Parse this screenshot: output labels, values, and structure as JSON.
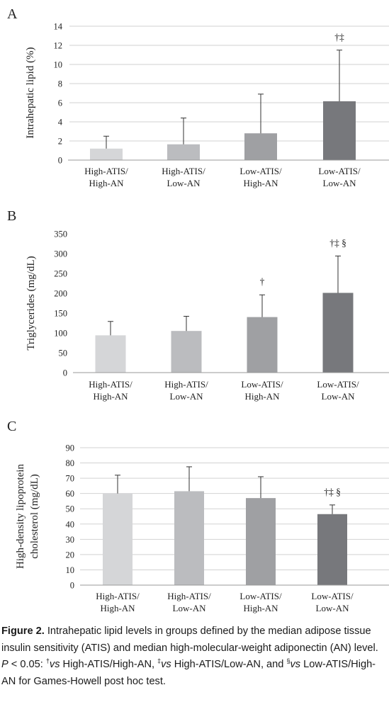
{
  "chart_data": [
    {
      "type": "bar",
      "panel_label": "A",
      "ylabel": "Intrahepatic lipid (%)",
      "ylim": [
        0,
        14
      ],
      "yticks": [
        0,
        2,
        4,
        6,
        8,
        10,
        12,
        14
      ],
      "grid": true,
      "categories": [
        [
          "High-ATIS/",
          "High-AN"
        ],
        [
          "High-ATIS/",
          "Low-AN"
        ],
        [
          "Low-ATIS/",
          "High-AN"
        ],
        [
          "Low-ATIS/",
          "Low-AN"
        ]
      ],
      "values": [
        1.2,
        1.65,
        2.8,
        6.15
      ],
      "error_upper": [
        2.5,
        4.4,
        6.9,
        11.5
      ],
      "annotations": [
        "",
        "",
        "",
        "†‡"
      ],
      "colors": [
        "#d5d6d8",
        "#bbbcbf",
        "#9fa0a3",
        "#77787c"
      ]
    },
    {
      "type": "bar",
      "panel_label": "B",
      "ylabel": "Triglycerides (mg/dL)",
      "ylim": [
        0,
        350
      ],
      "yticks": [
        0,
        50,
        100,
        150,
        200,
        250,
        300,
        350
      ],
      "grid": false,
      "categories": [
        [
          "High-ATIS/",
          "High-AN"
        ],
        [
          "High-ATIS/",
          "Low-AN"
        ],
        [
          "Low-ATIS/",
          "High-AN"
        ],
        [
          "Low-ATIS/",
          "Low-AN"
        ]
      ],
      "values": [
        94,
        105,
        140,
        201
      ],
      "error_upper": [
        129,
        142,
        196,
        294
      ],
      "annotations": [
        "",
        "",
        "†",
        "†‡ §"
      ],
      "colors": [
        "#d5d6d8",
        "#bbbcbf",
        "#9fa0a3",
        "#77787c"
      ]
    },
    {
      "type": "bar",
      "panel_label": "C",
      "ylabel": [
        "High-density lipoprotein",
        "cholesterol (mg/dL)"
      ],
      "ylim": [
        0,
        90
      ],
      "yticks": [
        0,
        10,
        20,
        30,
        40,
        50,
        60,
        70,
        80,
        90
      ],
      "grid": true,
      "categories": [
        [
          "High-ATIS/",
          "High-AN"
        ],
        [
          "High-ATIS/",
          "Low-AN"
        ],
        [
          "Low-ATIS/",
          "High-AN"
        ],
        [
          "Low-ATIS/",
          "Low-AN"
        ]
      ],
      "values": [
        60,
        61.5,
        57,
        46.5
      ],
      "error_upper": [
        72,
        77.5,
        71,
        52.5
      ],
      "annotations": [
        "",
        "",
        "",
        "†‡ §"
      ],
      "colors": [
        "#d5d6d8",
        "#bbbcbf",
        "#9fa0a3",
        "#77787c"
      ]
    }
  ],
  "caption": {
    "lead": "Figure 2.",
    "text_1": " Intrahepatic lipid levels in groups defined by the median adipose tissue insulin sensitivity (ATIS) and median high-molecular-weight adiponectin (AN) level. ",
    "p_label": "P",
    "text_2": " < 0.05: ",
    "mark_1": "†",
    "vs_1": "vs",
    "text_3": " High-ATIS/High-AN, ",
    "mark_2": "‡",
    "vs_2": "vs",
    "text_4": " High-ATIS/Low-AN, and ",
    "mark_3": "§",
    "vs_3": "vs",
    "text_5": " Low-ATIS/High-AN for Games-Howell post hoc test."
  }
}
